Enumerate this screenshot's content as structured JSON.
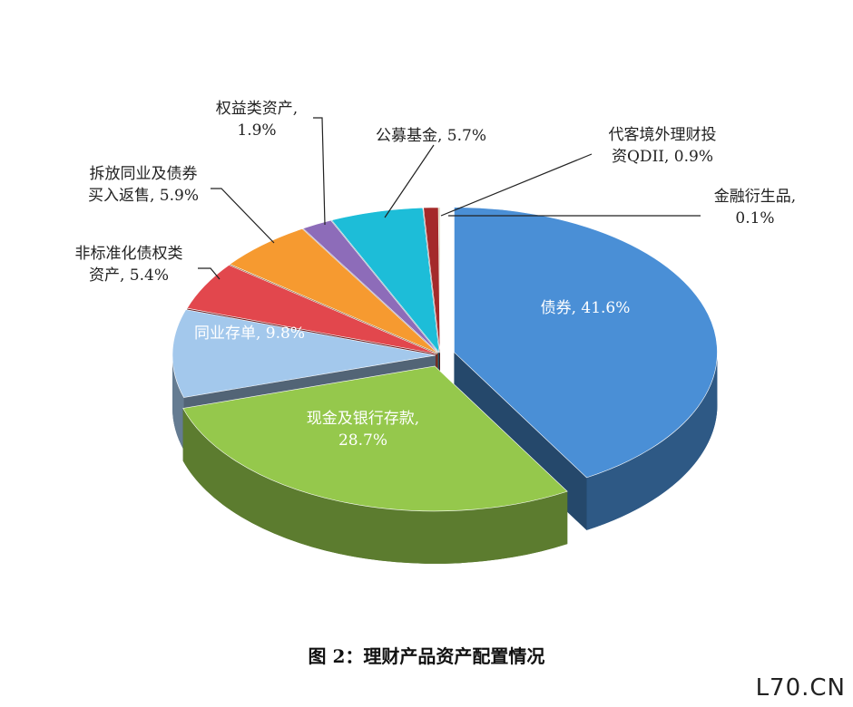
{
  "chart_data": {
    "type": "pie",
    "title": "图 2：理财产品资产配置情况",
    "values": [
      41.6,
      28.7,
      9.8,
      5.4,
      5.9,
      1.9,
      5.7,
      0.9,
      0.1
    ],
    "value_labels": [
      "债券, 41.6%",
      "现金及银行存款, 28.7%",
      "同业存单, 9.8%",
      "非标准化债权类资产, 5.4%",
      "拆放同业及债券买入返售, 5.9%",
      "权益类资产, 1.9%",
      "公募基金, 5.7%",
      "代客境外理财投资QDII, 0.9%",
      "金融衍生品, 0.1%"
    ],
    "colors": [
      "#4a8fd6",
      "#95c84c",
      "#a3c8ec",
      "#e2474d",
      "#f69a30",
      "#8d6cb9",
      "#1dbdd8",
      "#a42a2a",
      "#d8d2b0"
    ],
    "watermark": "L70.CN"
  }
}
